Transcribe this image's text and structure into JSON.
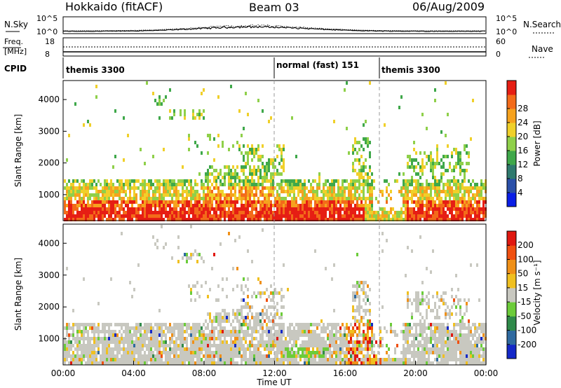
{
  "header": {
    "station": "Hokkaido (fitACF)",
    "beam": "Beam 03",
    "date": "06/Aug/2009"
  },
  "panels": {
    "nsky": {
      "label": "N.Sky",
      "ticks_left": [
        "10^5",
        "10^0"
      ],
      "ticks_right": [
        "10^5",
        "10^0"
      ],
      "right_label": "N.Search"
    },
    "freq": {
      "label_top": "Freq.",
      "label_unit": "[MHz]",
      "ticks_left": [
        "18",
        "8"
      ],
      "ticks_right": [
        "60",
        "0"
      ],
      "right_label": "Nave"
    },
    "cpid": {
      "label": "CPID",
      "segments": [
        "themis 3300",
        "normal (fast) 151",
        "themis 3300"
      ]
    }
  },
  "chart_data": [
    {
      "type": "heatmap",
      "name": "power",
      "ylabel": "Slant Range [km]",
      "yticks": [
        "1000",
        "2000",
        "3000",
        "4000"
      ],
      "ylim": [
        180,
        4600
      ],
      "xlim": [
        0,
        24
      ],
      "colorbar": {
        "label": "Power [dB]",
        "ticks": [
          "4",
          "8",
          "12",
          "16",
          "20",
          "24",
          "28"
        ],
        "colors": [
          "#0a1ee6",
          "#2a4fa8",
          "#2f7a6e",
          "#3fa84a",
          "#8fd04a",
          "#f0d02a",
          "#f6a21e",
          "#f36b1a",
          "#e61e14"
        ]
      }
    },
    {
      "type": "heatmap",
      "name": "velocity",
      "ylabel": "Slant Range [km]",
      "yticks": [
        "1000",
        "2000",
        "3000",
        "4000"
      ],
      "ylim": [
        180,
        4600
      ],
      "xlim": [
        0,
        24
      ],
      "colorbar": {
        "label": "Velocity [m s⁻¹]",
        "ticks": [
          "200",
          "100",
          "50",
          "15",
          "-15",
          "-50",
          "-100",
          "-200"
        ],
        "colors": [
          "#1428c8",
          "#2f6aa0",
          "#2f8a4a",
          "#6ccc3a",
          "#c8c8c0",
          "#f0c020",
          "#f09018",
          "#f05010",
          "#e01810"
        ]
      }
    }
  ],
  "xaxis": {
    "label": "Time UT",
    "ticks": [
      "00:00",
      "04:00",
      "08:00",
      "12:00",
      "16:00",
      "20:00",
      "00:00"
    ]
  }
}
